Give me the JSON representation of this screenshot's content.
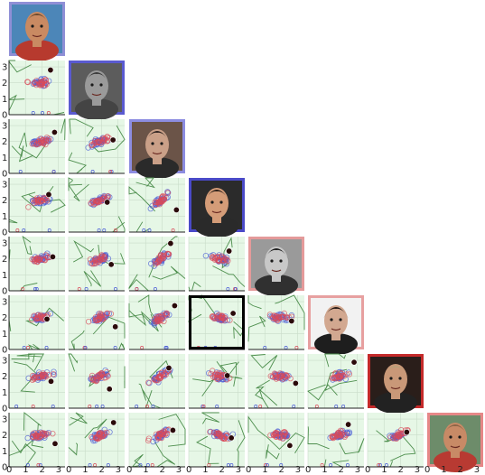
{
  "faces": [
    {
      "id": "face-1",
      "frame_color": "#8f8fd6",
      "skin": "#c98a62",
      "hair": "#6a4a30",
      "bg": "#4c86b8",
      "shirt": "#b73a2e"
    },
    {
      "id": "face-2",
      "frame_color": "#5a5ad0",
      "skin": "#9a9a9a",
      "hair": "#3a3a3a",
      "bg": "#5c5c5c",
      "shirt": "#444444"
    },
    {
      "id": "face-3",
      "frame_color": "#8c8ce0",
      "skin": "#caa088",
      "hair": "#2f2320",
      "bg": "#6b5448",
      "shirt": "#2a2a2a"
    },
    {
      "id": "face-4",
      "frame_color": "#4a4ac8",
      "skin": "#d49c78",
      "hair": "#2a1e18",
      "bg": "#2b2b2b",
      "shirt": "#2a2a2a"
    },
    {
      "id": "face-5",
      "frame_color": "#e49a9a",
      "skin": "#c8c8c8",
      "hair": "#1c1c1c",
      "bg": "#9a9a9a",
      "shirt": "#303030"
    },
    {
      "id": "face-6",
      "frame_color": "#e7a0a0",
      "skin": "#d2a890",
      "hair": "#251a16",
      "bg": "#f2f2f2",
      "shirt": "#1e1e1e"
    },
    {
      "id": "face-7",
      "frame_color": "#c42a2a",
      "skin": "#c99878",
      "hair": "#b9a07a",
      "bg": "#2a1e1a",
      "shirt": "#222222"
    },
    {
      "id": "face-8",
      "frame_color": "#e68888",
      "skin": "#c88a66",
      "hair": "#8a6446",
      "bg": "#6d8c6a",
      "shirt": "#b83a32"
    }
  ],
  "axis": {
    "y_ticks": [
      "0",
      "1",
      "2",
      "3"
    ],
    "x_ticks": [
      "0",
      "1",
      "2",
      "3"
    ],
    "range": [
      0,
      3.4
    ]
  },
  "colors": {
    "panel_bg": "#e6f7e6",
    "grid": "#c9dcc9",
    "boundary": "#4e8f4e",
    "class_a": "#4a5cd6",
    "class_b": "#d94b5a",
    "marker": "#2a0a0a",
    "highlight": "#000000"
  },
  "highlighted_cell": {
    "row": 5,
    "col": 3
  }
}
